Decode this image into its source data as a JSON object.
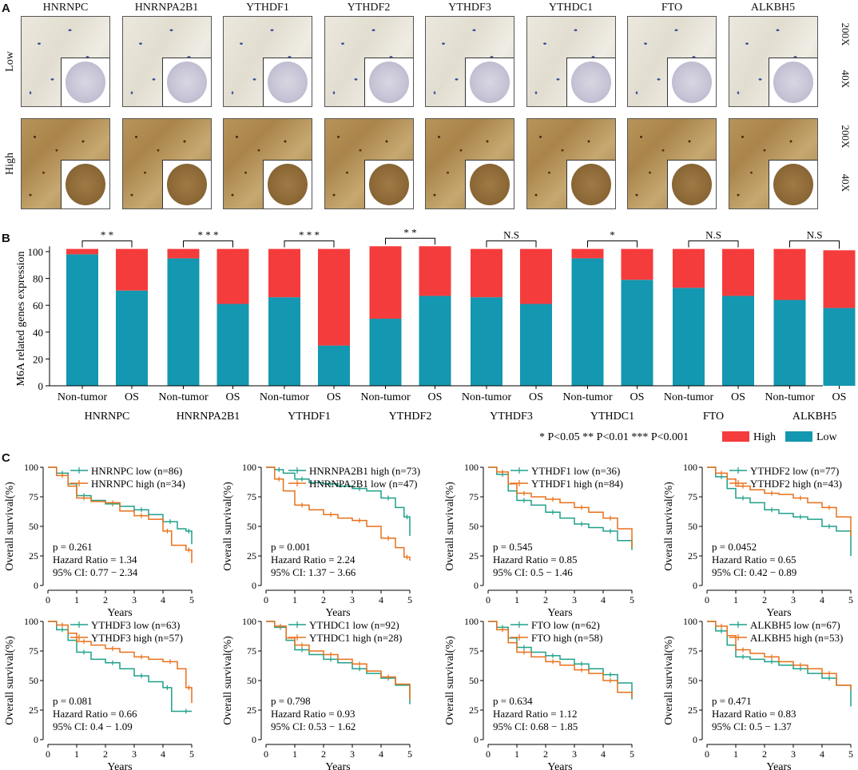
{
  "panel_labels": {
    "a": "A",
    "b": "B",
    "c": "C"
  },
  "genes": [
    "HNRNPC",
    "HNRNPA2B1",
    "YTHDF1",
    "YTHDF2",
    "YTHDF3",
    "YTHDC1",
    "FTO",
    "ALKBH5"
  ],
  "panel_a": {
    "row_labels": [
      "Low",
      "High"
    ],
    "magnifications": [
      "200X",
      "40X",
      "200X",
      "40X"
    ],
    "tile_icon": "tissue-micrograph"
  },
  "colors": {
    "high": "#f53c3c",
    "low": "#1497b0",
    "km_low_line": "#1fa08a",
    "km_high_line": "#e8701a"
  },
  "chart_data": [
    {
      "type": "bar",
      "subtype": "stacked-100",
      "ylabel": "M6A related genes expression",
      "ylim": [
        0,
        100
      ],
      "yticks": [
        0,
        20,
        40,
        60,
        80,
        100
      ],
      "group_labels": [
        "Non-tumor",
        "OS"
      ],
      "legend": {
        "note": "* P<0.05 ** P<0.01 *** P<0.001",
        "high": "High",
        "low": "Low"
      },
      "groups": [
        {
          "gene": "HNRNPC",
          "sig": "* *",
          "nontumor": {
            "low": 98,
            "total": 102
          },
          "os": {
            "low": 71,
            "total": 102
          }
        },
        {
          "gene": "HNRNPA2B1",
          "sig": "* * *",
          "nontumor": {
            "low": 95,
            "total": 102
          },
          "os": {
            "low": 61,
            "total": 102
          }
        },
        {
          "gene": "YTHDF1",
          "sig": "* * *",
          "nontumor": {
            "low": 66,
            "total": 102
          },
          "os": {
            "low": 30,
            "total": 102
          }
        },
        {
          "gene": "YTHDF2",
          "sig": "* *",
          "nontumor": {
            "low": 50,
            "total": 104
          },
          "os": {
            "low": 67,
            "total": 104
          }
        },
        {
          "gene": "YTHDF3",
          "sig": "N.S",
          "nontumor": {
            "low": 66,
            "total": 102
          },
          "os": {
            "low": 61,
            "total": 102
          }
        },
        {
          "gene": "YTHDC1",
          "sig": "*",
          "nontumor": {
            "low": 95,
            "total": 102
          },
          "os": {
            "low": 79,
            "total": 102
          }
        },
        {
          "gene": "FTO",
          "sig": "N.S",
          "nontumor": {
            "low": 73,
            "total": 102
          },
          "os": {
            "low": 67,
            "total": 102
          }
        },
        {
          "gene": "ALKBH5",
          "sig": "N.S",
          "nontumor": {
            "low": 64,
            "total": 102
          },
          "os": {
            "low": 58,
            "total": 101
          }
        }
      ]
    },
    {
      "type": "line",
      "subtype": "kaplan-meier",
      "xlabel": "Years",
      "ylabel": "Overall survival(%)",
      "xlim": [
        0,
        5
      ],
      "ylim": [
        0,
        100
      ],
      "xticks": [
        0,
        1,
        2,
        3,
        4,
        5
      ],
      "yticks": [
        0,
        25,
        50,
        75,
        100
      ],
      "plots": [
        {
          "legend": [
            "HNRNPC low (n=86)",
            "HNRNPC high (n=34)"
          ],
          "stats": [
            "p = 0.261",
            "Hazard Ratio = 1.34",
            "95% CI: 0.77 − 2.34"
          ],
          "series": [
            {
              "color": "low",
              "x": [
                0,
                0.3,
                0.7,
                1,
                1.5,
                2,
                2.5,
                3,
                3.5,
                4,
                4.5,
                4.8,
                5
              ],
              "y": [
                100,
                95,
                86,
                76,
                72,
                69,
                67,
                64,
                60,
                54,
                48,
                46,
                35
              ]
            },
            {
              "color": "high",
              "x": [
                0,
                0.3,
                0.7,
                1,
                1.5,
                2,
                2.5,
                3,
                3.5,
                4,
                4.3,
                4.8,
                5
              ],
              "y": [
                100,
                93,
                84,
                74,
                71,
                70,
                63,
                59,
                56,
                46,
                34,
                30,
                19
              ]
            }
          ]
        },
        {
          "legend": [
            "HNRNPA2B1 high (n=73)",
            "HNRNPA2B1 low (n=47)"
          ],
          "stats": [
            "p = 0.001",
            "Hazard Ratio = 2.24",
            "95% CI: 1.37 − 3.66"
          ],
          "series": [
            {
              "color": "low",
              "x": [
                0,
                0.3,
                0.6,
                1,
                1.5,
                2,
                2.5,
                3,
                3.5,
                4,
                4.5,
                4.8,
                5
              ],
              "y": [
                100,
                98,
                95,
                90,
                87,
                86,
                84,
                82,
                80,
                74,
                66,
                58,
                42
              ]
            },
            {
              "color": "high",
              "x": [
                0,
                0.3,
                0.6,
                1,
                1.5,
                2,
                2.5,
                3,
                3.5,
                4,
                4.5,
                4.8,
                5
              ],
              "y": [
                100,
                90,
                80,
                68,
                64,
                60,
                57,
                55,
                50,
                40,
                32,
                24,
                21
              ]
            }
          ]
        },
        {
          "legend": [
            "YTHDF1 low (n=36)",
            "YTHDF1 high (n=84)"
          ],
          "stats": [
            "p = 0.545",
            "Hazard Ratio = 0.85",
            "95% CI: 0.5 − 1.46"
          ],
          "series": [
            {
              "color": "low",
              "x": [
                0,
                0.3,
                0.7,
                1,
                1.5,
                2,
                2.5,
                3,
                3.5,
                4,
                4.5,
                5
              ],
              "y": [
                100,
                94,
                80,
                72,
                68,
                62,
                57,
                52,
                49,
                46,
                38,
                30
              ]
            },
            {
              "color": "high",
              "x": [
                0,
                0.3,
                0.7,
                1,
                1.5,
                2,
                2.5,
                3,
                3.5,
                4,
                4.5,
                5
              ],
              "y": [
                100,
                96,
                86,
                78,
                75,
                73,
                70,
                66,
                62,
                57,
                48,
                32
              ]
            }
          ]
        },
        {
          "legend": [
            "YTHDF2 low (n=77)",
            "YTHDF2 high (n=43)"
          ],
          "stats": [
            "p = 0.0452",
            "Hazard Ratio = 0.65",
            "95% CI: 0.42 − 0.89"
          ],
          "series": [
            {
              "color": "low",
              "x": [
                0,
                0.3,
                0.7,
                1,
                1.5,
                2,
                2.5,
                3,
                3.5,
                4,
                4.5,
                5
              ],
              "y": [
                100,
                92,
                82,
                74,
                70,
                64,
                61,
                58,
                56,
                50,
                46,
                25
              ]
            },
            {
              "color": "high",
              "x": [
                0,
                0.3,
                0.7,
                1,
                1.5,
                2,
                2.5,
                3,
                3.5,
                4,
                4.5,
                5
              ],
              "y": [
                100,
                95,
                90,
                84,
                81,
                78,
                77,
                74,
                70,
                66,
                58,
                42
              ]
            }
          ]
        },
        {
          "legend": [
            "YTHDF3 low (n=63)",
            "YTHDF3 high (n=57)"
          ],
          "stats": [
            "p = 0.081",
            "Hazard Ratio = 0.66",
            "95% CI: 0.4 − 1.09"
          ],
          "series": [
            {
              "color": "low",
              "x": [
                0,
                0.3,
                0.7,
                1,
                1.5,
                2,
                2.5,
                3,
                3.5,
                4,
                4.3,
                4.6,
                5
              ],
              "y": [
                100,
                93,
                84,
                74,
                68,
                65,
                60,
                54,
                49,
                44,
                24,
                24,
                24
              ]
            },
            {
              "color": "high",
              "x": [
                0,
                0.3,
                0.7,
                1,
                1.5,
                2,
                2.5,
                3,
                3.5,
                4,
                4.5,
                4.8,
                5
              ],
              "y": [
                100,
                97,
                90,
                83,
                80,
                77,
                74,
                70,
                68,
                66,
                60,
                44,
                31
              ]
            }
          ]
        },
        {
          "legend": [
            "YTHDC1 low (n=92)",
            "YTHDC1 high (n=28)"
          ],
          "stats": [
            "p = 0.798",
            "Hazard Ratio = 0.93",
            "95% CI: 0.53 − 1.62"
          ],
          "series": [
            {
              "color": "low",
              "x": [
                0,
                0.3,
                0.7,
                1,
                1.5,
                2,
                2.5,
                3,
                3.5,
                4,
                4.5,
                5
              ],
              "y": [
                100,
                95,
                84,
                76,
                72,
                68,
                65,
                60,
                56,
                52,
                46,
                30
              ]
            },
            {
              "color": "high",
              "x": [
                0,
                0.3,
                0.7,
                1,
                1.5,
                2,
                2.5,
                3,
                3.5,
                4,
                4.5,
                5
              ],
              "y": [
                100,
                96,
                86,
                80,
                75,
                72,
                68,
                64,
                58,
                53,
                47,
                34
              ]
            }
          ]
        },
        {
          "legend": [
            "FTO low (n=62)",
            "FTO high (n=58)"
          ],
          "stats": [
            "p = 0.634",
            "Hazard Ratio = 1.12",
            "95% CI: 0.68 − 1.85"
          ],
          "series": [
            {
              "color": "low",
              "x": [
                0,
                0.3,
                0.7,
                1,
                1.5,
                2,
                2.5,
                3,
                3.5,
                4,
                4.5,
                5
              ],
              "y": [
                100,
                95,
                86,
                78,
                74,
                71,
                68,
                64,
                60,
                55,
                48,
                34
              ]
            },
            {
              "color": "high",
              "x": [
                0,
                0.3,
                0.7,
                1,
                1.5,
                2,
                2.5,
                3,
                3.5,
                4,
                4.5,
                5
              ],
              "y": [
                100,
                93,
                82,
                74,
                70,
                66,
                63,
                59,
                56,
                50,
                40,
                36
              ]
            }
          ]
        },
        {
          "legend": [
            "ALKBH5 low (n=67)",
            "ALKBH5 high (n=53)"
          ],
          "stats": [
            "p = 0.471",
            "Hazard Ratio = 0.83",
            "95% CI: 0.5 − 1.37"
          ],
          "series": [
            {
              "color": "low",
              "x": [
                0,
                0.3,
                0.7,
                1,
                1.5,
                2,
                2.5,
                3,
                3.5,
                4,
                4.5,
                5
              ],
              "y": [
                100,
                92,
                80,
                70,
                68,
                66,
                63,
                60,
                56,
                52,
                46,
                28
              ]
            },
            {
              "color": "high",
              "x": [
                0,
                0.3,
                0.7,
                1,
                1.5,
                2,
                2.5,
                3,
                3.5,
                4,
                4.5,
                5
              ],
              "y": [
                100,
                96,
                88,
                76,
                73,
                70,
                66,
                63,
                60,
                56,
                46,
                42
              ]
            }
          ]
        }
      ]
    }
  ]
}
